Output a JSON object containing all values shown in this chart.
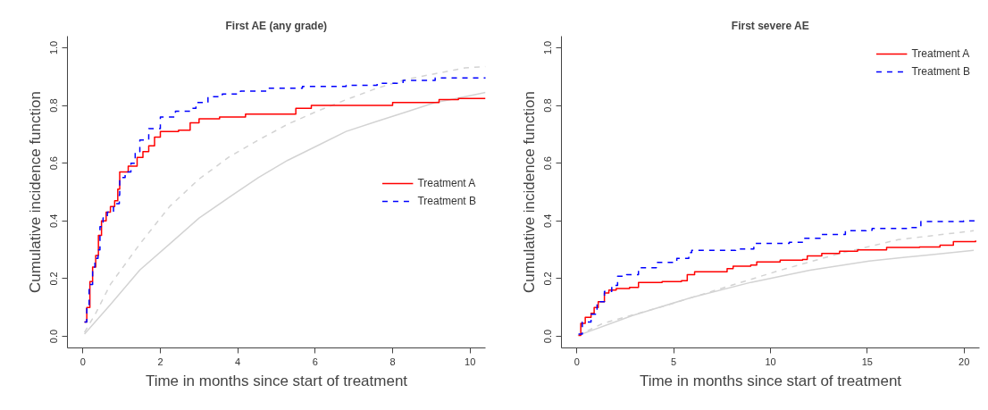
{
  "chart_data": [
    {
      "type": "step",
      "title": "First AE (any grade)",
      "xlabel": "Time in months since start of treatment",
      "ylabel": "Cumulative incidence function",
      "xlim": [
        -0.4,
        10.4
      ],
      "ylim": [
        -0.04,
        1.04
      ],
      "xticks": [
        0,
        2,
        4,
        6,
        8,
        10
      ],
      "yticks": [
        {
          "value": 0,
          "label": "0.0"
        },
        {
          "value": 0.2,
          "label": "0.2"
        },
        {
          "value": 0.4,
          "label": "0.4"
        },
        {
          "value": 0.6,
          "label": "0.6"
        },
        {
          "value": 0.8,
          "label": "0.8"
        },
        {
          "value": 1,
          "label": "1.0"
        }
      ],
      "grid": false,
      "legend": "right",
      "series": [
        {
          "type": "line",
          "color": "#d3d3d3",
          "line_style": "dashed",
          "x": [
            0.04,
            0.33,
            0.71,
            1.47,
            2.24,
            3.0,
            3.76,
            4.53,
            5.29,
            6.05,
            6.8,
            7.6,
            8.34,
            9.1,
            9.87,
            10.4
          ],
          "values": [
            0.014,
            0.08,
            0.18,
            0.32,
            0.45,
            0.545,
            0.62,
            0.68,
            0.735,
            0.78,
            0.82,
            0.86,
            0.89,
            0.91,
            0.93,
            0.935
          ]
        },
        {
          "type": "line",
          "color": "#d3d3d3",
          "line_style": "solid",
          "x": [
            0.04,
            0.71,
            1.47,
            2.24,
            3.0,
            3.76,
            4.53,
            5.29,
            6.05,
            6.8,
            7.6,
            8.34,
            9.1,
            9.87,
            10.4
          ],
          "values": [
            0.008,
            0.11,
            0.23,
            0.32,
            0.41,
            0.48,
            0.55,
            0.61,
            0.66,
            0.71,
            0.745,
            0.777,
            0.81,
            0.83,
            0.845
          ]
        },
        {
          "name": "Treatment A",
          "color": "#ff0000",
          "line_style": "solid",
          "x": [
            0.04,
            0.1,
            0.18,
            0.25,
            0.33,
            0.4,
            0.48,
            0.6,
            0.71,
            0.82,
            0.9,
            0.95,
            1.09,
            1.17,
            1.4,
            1.55,
            1.7,
            1.85,
            2.0,
            2.47,
            2.77,
            3.0,
            3.53,
            4.2,
            5.1,
            5.5,
            5.9,
            6.5,
            8.0,
            8.7,
            9.2,
            9.7,
            10.4
          ],
          "values": [
            0.05,
            0.1,
            0.19,
            0.24,
            0.28,
            0.35,
            0.4,
            0.43,
            0.45,
            0.47,
            0.51,
            0.57,
            0.57,
            0.59,
            0.62,
            0.64,
            0.66,
            0.69,
            0.71,
            0.714,
            0.74,
            0.754,
            0.76,
            0.77,
            0.77,
            0.79,
            0.8,
            0.8,
            0.81,
            0.81,
            0.82,
            0.824,
            0.824
          ]
        },
        {
          "name": "Treatment B",
          "color": "#0000ff",
          "line_style": "dashed",
          "x": [
            0.04,
            0.1,
            0.16,
            0.25,
            0.31,
            0.39,
            0.44,
            0.52,
            0.63,
            0.79,
            0.94,
            0.95,
            1.09,
            1.24,
            1.35,
            1.47,
            1.7,
            2.0,
            2.39,
            2.77,
            2.92,
            3.23,
            3.6,
            4.07,
            4.76,
            5.67,
            6.8,
            7.6,
            8.27,
            9.1,
            10.4
          ],
          "values": [
            0.05,
            0.11,
            0.18,
            0.24,
            0.27,
            0.3,
            0.38,
            0.41,
            0.43,
            0.46,
            0.49,
            0.55,
            0.57,
            0.6,
            0.64,
            0.68,
            0.72,
            0.76,
            0.78,
            0.79,
            0.81,
            0.83,
            0.84,
            0.85,
            0.86,
            0.866,
            0.87,
            0.877,
            0.887,
            0.895,
            0.898
          ]
        }
      ]
    },
    {
      "type": "step",
      "title": "First severe AE",
      "xlabel": "Time in months since start of treatment",
      "ylabel": "Cumulative incidence function",
      "xlim": [
        -0.8,
        20.8
      ],
      "ylim": [
        -0.04,
        1.04
      ],
      "xticks": [
        0,
        5,
        10,
        15,
        20
      ],
      "yticks": [
        {
          "value": 0,
          "label": "0.0"
        },
        {
          "value": 0.2,
          "label": "0.2"
        },
        {
          "value": 0.4,
          "label": "0.4"
        },
        {
          "value": 0.6,
          "label": "0.6"
        },
        {
          "value": 0.8,
          "label": "0.8"
        },
        {
          "value": 1,
          "label": "1.0"
        }
      ],
      "grid": false,
      "legend": "top right",
      "series": [
        {
          "type": "line",
          "color": "#d3d3d3",
          "line_style": "dashed",
          "x": [
            0.05,
            1.34,
            4.4,
            7.46,
            10.5,
            13.57,
            16.6,
            20.5
          ],
          "values": [
            0.003,
            0.045,
            0.103,
            0.166,
            0.229,
            0.287,
            0.335,
            0.366
          ]
        },
        {
          "type": "line",
          "color": "#d3d3d3",
          "line_style": "solid",
          "x": [
            0.05,
            2.87,
            5.93,
            8.98,
            12.04,
            15.1,
            18.15,
            20.5
          ],
          "values": [
            0.003,
            0.072,
            0.135,
            0.187,
            0.229,
            0.261,
            0.282,
            0.298
          ]
        },
        {
          "name": "Treatment A",
          "color": "#ff0000",
          "line_style": "solid",
          "x": [
            0.08,
            0.2,
            0.43,
            0.73,
            0.89,
            1.1,
            1.42,
            1.65,
            2.03,
            2.72,
            3.18,
            4.4,
            5.4,
            5.7,
            6.08,
            7.76,
            8.07,
            8.98,
            9.29,
            10.5,
            11.66,
            11.9,
            12.65,
            13.57,
            14.5,
            16.0,
            17.7,
            18.76,
            19.45,
            20.6
          ],
          "values": [
            0.003,
            0.045,
            0.066,
            0.08,
            0.1,
            0.12,
            0.15,
            0.16,
            0.166,
            0.17,
            0.187,
            0.19,
            0.193,
            0.214,
            0.224,
            0.235,
            0.243,
            0.247,
            0.258,
            0.264,
            0.266,
            0.279,
            0.287,
            0.295,
            0.3,
            0.308,
            0.31,
            0.316,
            0.328,
            0.332
          ]
        },
        {
          "name": "Treatment B",
          "color": "#0000ff",
          "line_style": "dashed",
          "x": [
            0.08,
            0.28,
            0.73,
            1.04,
            1.42,
            1.8,
            2.1,
            2.57,
            3.18,
            4.1,
            5.16,
            5.78,
            5.93,
            8.2,
            9.14,
            10.97,
            11.73,
            12.57,
            13.87,
            14.94,
            15.25,
            17.2,
            17.77,
            19.98,
            20.6
          ],
          "values": [
            0.008,
            0.05,
            0.077,
            0.12,
            0.156,
            0.177,
            0.208,
            0.214,
            0.238,
            0.256,
            0.27,
            0.29,
            0.298,
            0.303,
            0.322,
            0.326,
            0.34,
            0.353,
            0.366,
            0.368,
            0.374,
            0.377,
            0.398,
            0.4,
            0.408
          ]
        }
      ]
    }
  ]
}
